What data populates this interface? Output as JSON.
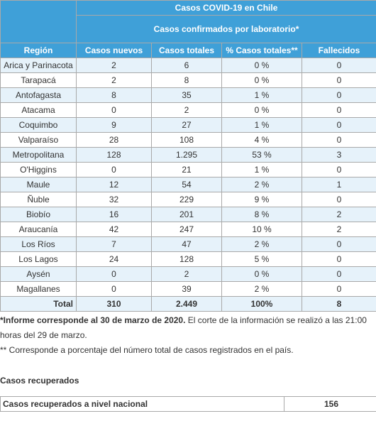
{
  "table": {
    "title": "Casos COVID-19 en Chile",
    "subtitle": "Casos confirmados por laboratorio*",
    "columns": [
      "Región",
      "Casos nuevos",
      "Casos totales",
      "% Casos totales**",
      "Fallecidos"
    ],
    "rows": [
      [
        "Arica y Parinacota",
        "2",
        "6",
        "0 %",
        "0"
      ],
      [
        "Tarapacá",
        "2",
        "8",
        "0 %",
        "0"
      ],
      [
        "Antofagasta",
        "8",
        "35",
        "1 %",
        "0"
      ],
      [
        "Atacama",
        "0",
        "2",
        "0 %",
        "0"
      ],
      [
        "Coquimbo",
        "9",
        "27",
        "1 %",
        "0"
      ],
      [
        "Valparaíso",
        "28",
        "108",
        "4 %",
        "0"
      ],
      [
        "Metropolitana",
        "128",
        "1.295",
        "53 %",
        "3"
      ],
      [
        "O'Higgins",
        "0",
        "21",
        "1 %",
        "0"
      ],
      [
        "Maule",
        "12",
        "54",
        "2 %",
        "1"
      ],
      [
        "Ñuble",
        "32",
        "229",
        "9 %",
        "0"
      ],
      [
        "Biobío",
        "16",
        "201",
        "8 %",
        "2"
      ],
      [
        "Araucanía",
        "42",
        "247",
        "10 %",
        "2"
      ],
      [
        "Los Ríos",
        "7",
        "47",
        "2 %",
        "0"
      ],
      [
        "Los Lagos",
        "24",
        "128",
        "5 %",
        "0"
      ],
      [
        "Aysén",
        "0",
        "2",
        "0 %",
        "0"
      ],
      [
        "Magallanes",
        "0",
        "39",
        "2 %",
        "0"
      ]
    ],
    "total": [
      "Total",
      "310",
      "2.449",
      "100%",
      "8"
    ]
  },
  "notes": {
    "first_bold": "*Informe corresponde al 30 de marzo de 2020.",
    "first_rest": "El corte de la información se realizó a las 21:00 horas del 29 de marzo.",
    "second": "** Corresponde a porcentaje del número total de casos registrados en el país."
  },
  "recovered": {
    "heading": "Casos recuperados",
    "label": "Casos recuperados a nivel nacional",
    "value": "156"
  }
}
